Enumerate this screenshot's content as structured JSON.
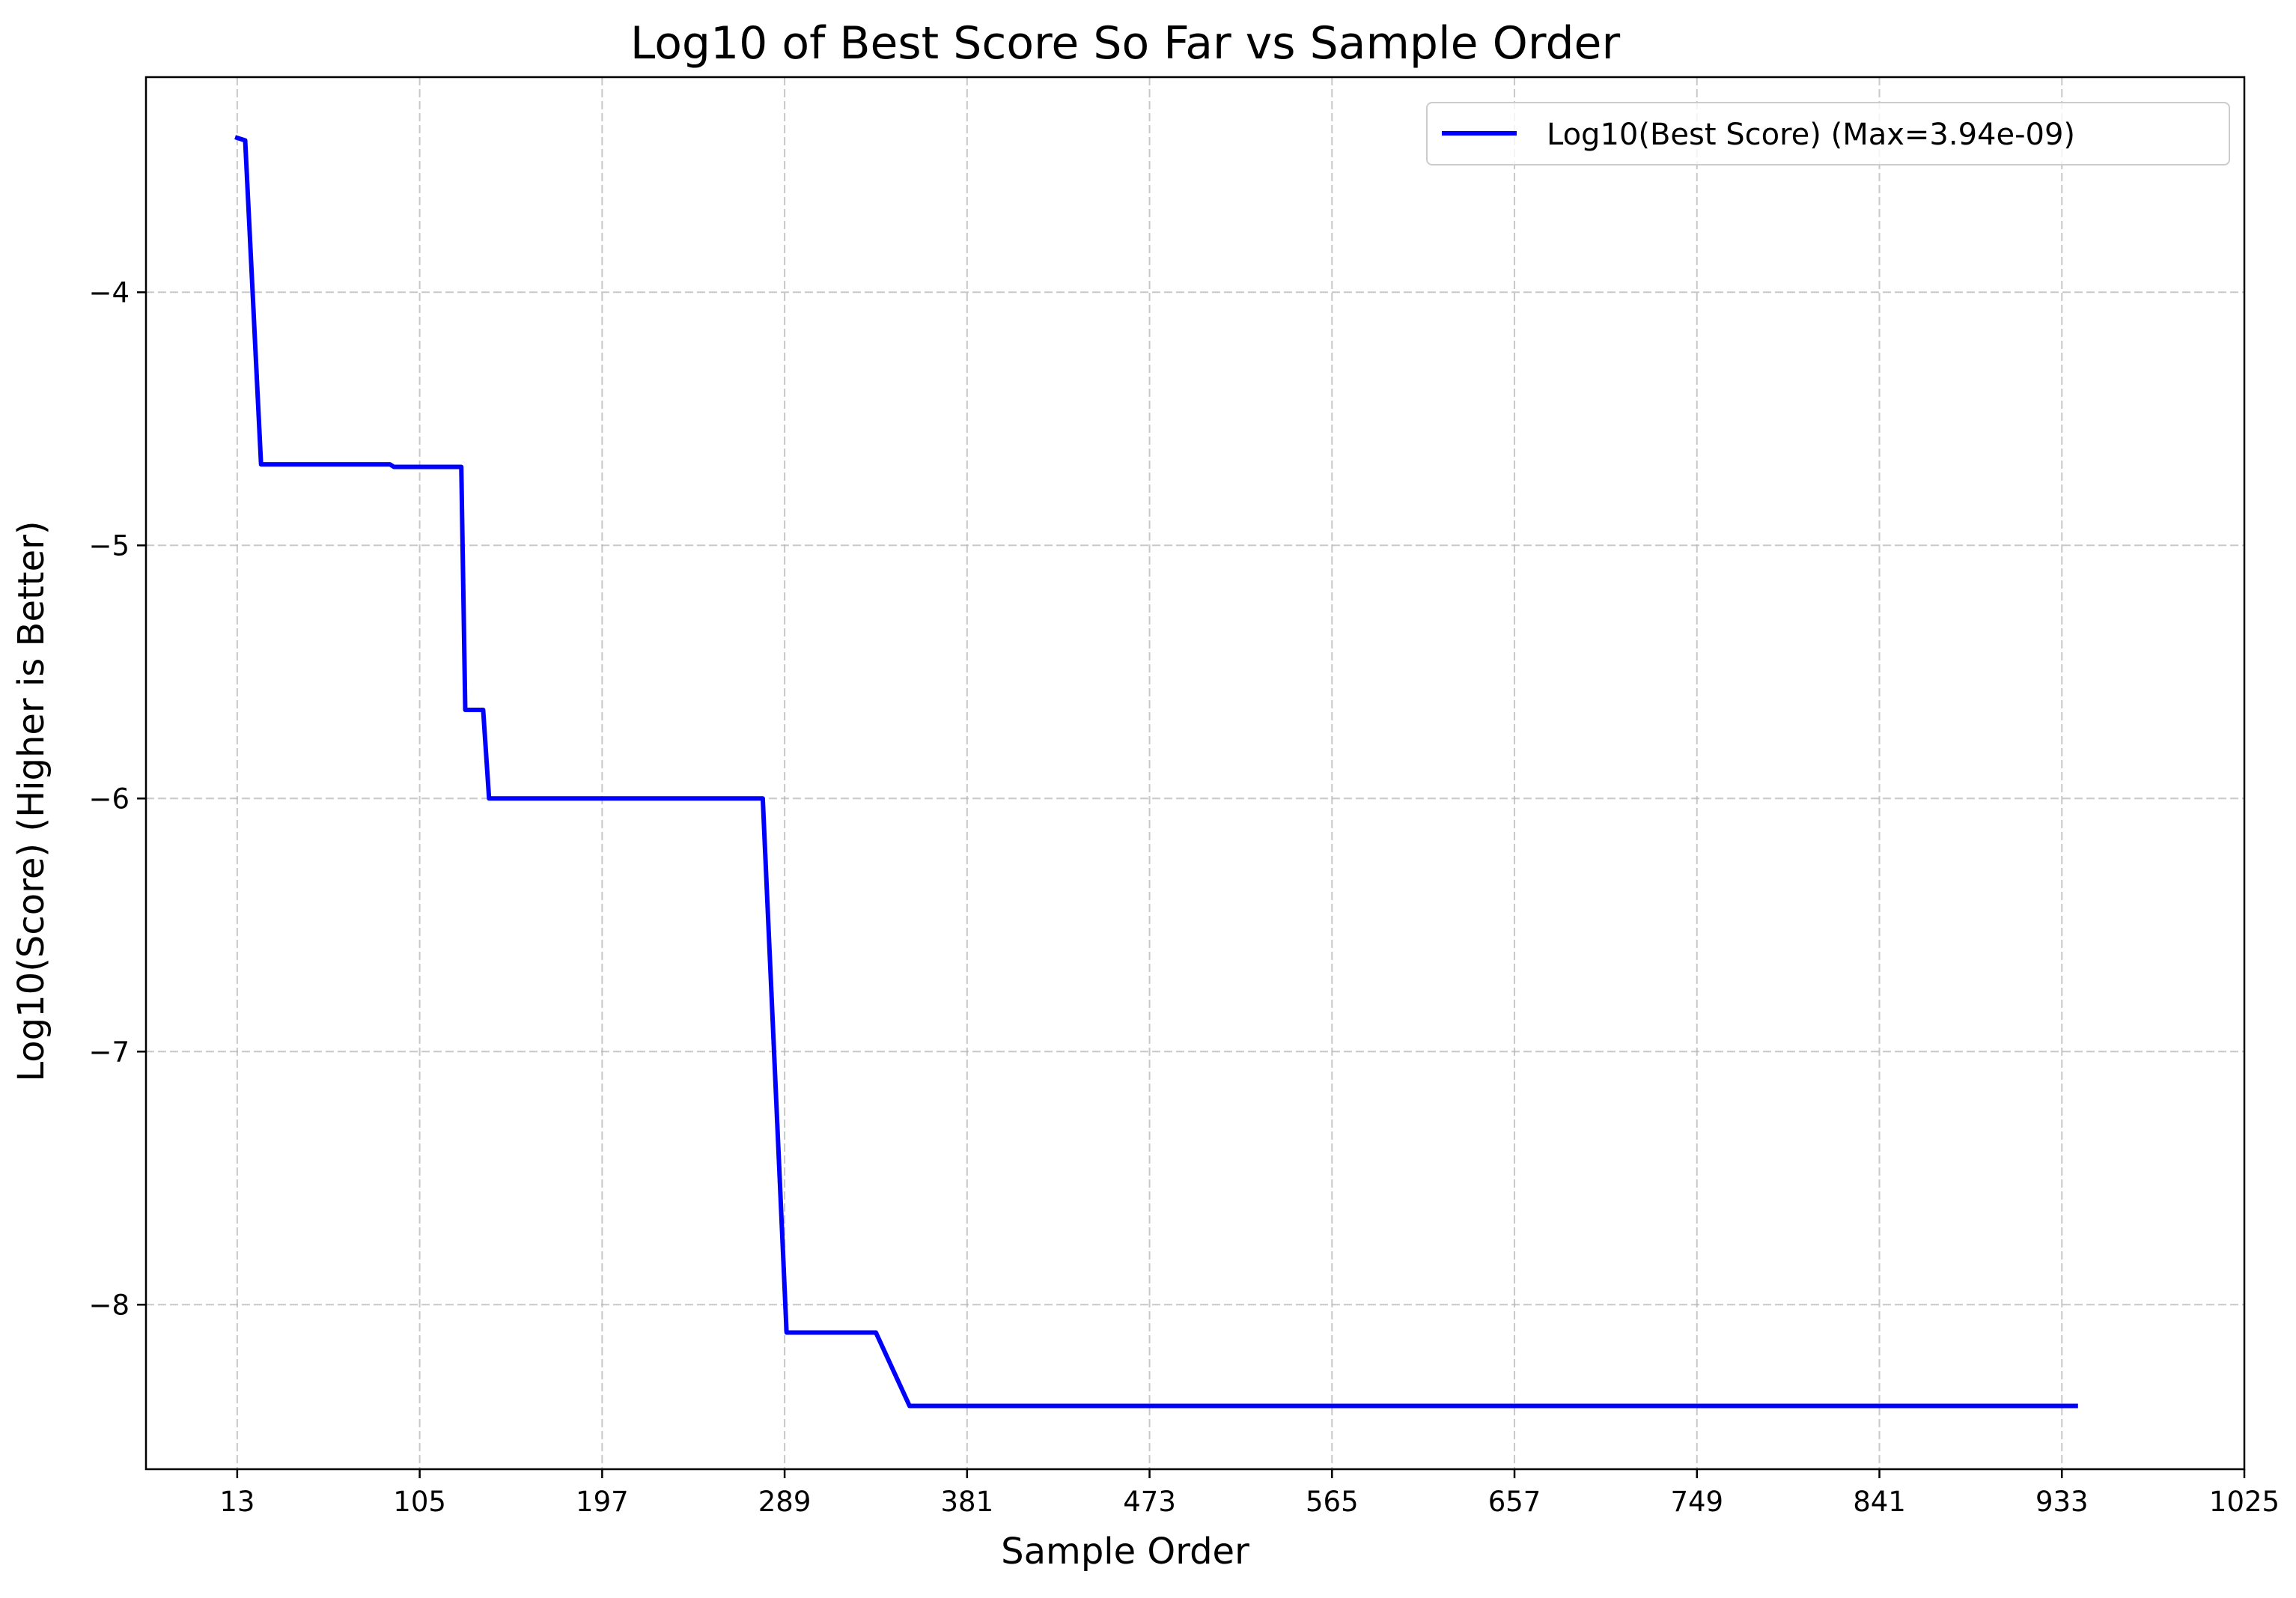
{
  "chart_data": {
    "type": "line",
    "title": "Log10 of Best Score So Far vs Sample Order",
    "xlabel": "Sample Order",
    "ylabel": "Log10(Score) (Higher is Better)",
    "xlim": [
      -33,
      1025
    ],
    "ylim": [
      -8.65,
      -3.15
    ],
    "x_ticks": [
      13,
      105,
      197,
      289,
      381,
      473,
      565,
      657,
      749,
      841,
      933,
      1025
    ],
    "y_ticks": [
      -4,
      -5,
      -6,
      -7,
      -8
    ],
    "y_tick_labels": [
      "−4",
      "−5",
      "−6",
      "−7",
      "−8"
    ],
    "grid": true,
    "legend_position": "top-right",
    "series": [
      {
        "name": "Log10(Best Score) (Max=3.94e-09)",
        "color": "#0000ff",
        "x": [
          13,
          17,
          25,
          90,
          92,
          94,
          126,
          128,
          130,
          137,
          140,
          142,
          276,
          278,
          290,
          292,
          333,
          335,
          352,
          354,
          940
        ],
        "y": [
          -3.39,
          -3.4,
          -4.68,
          -4.68,
          -4.69,
          -4.69,
          -4.69,
          -5.65,
          -5.65,
          -5.65,
          -6.0,
          -6.0,
          -6.0,
          -6.0,
          -8.11,
          -8.11,
          -8.11,
          -8.11,
          -8.4,
          -8.4,
          -8.4
        ]
      }
    ]
  }
}
